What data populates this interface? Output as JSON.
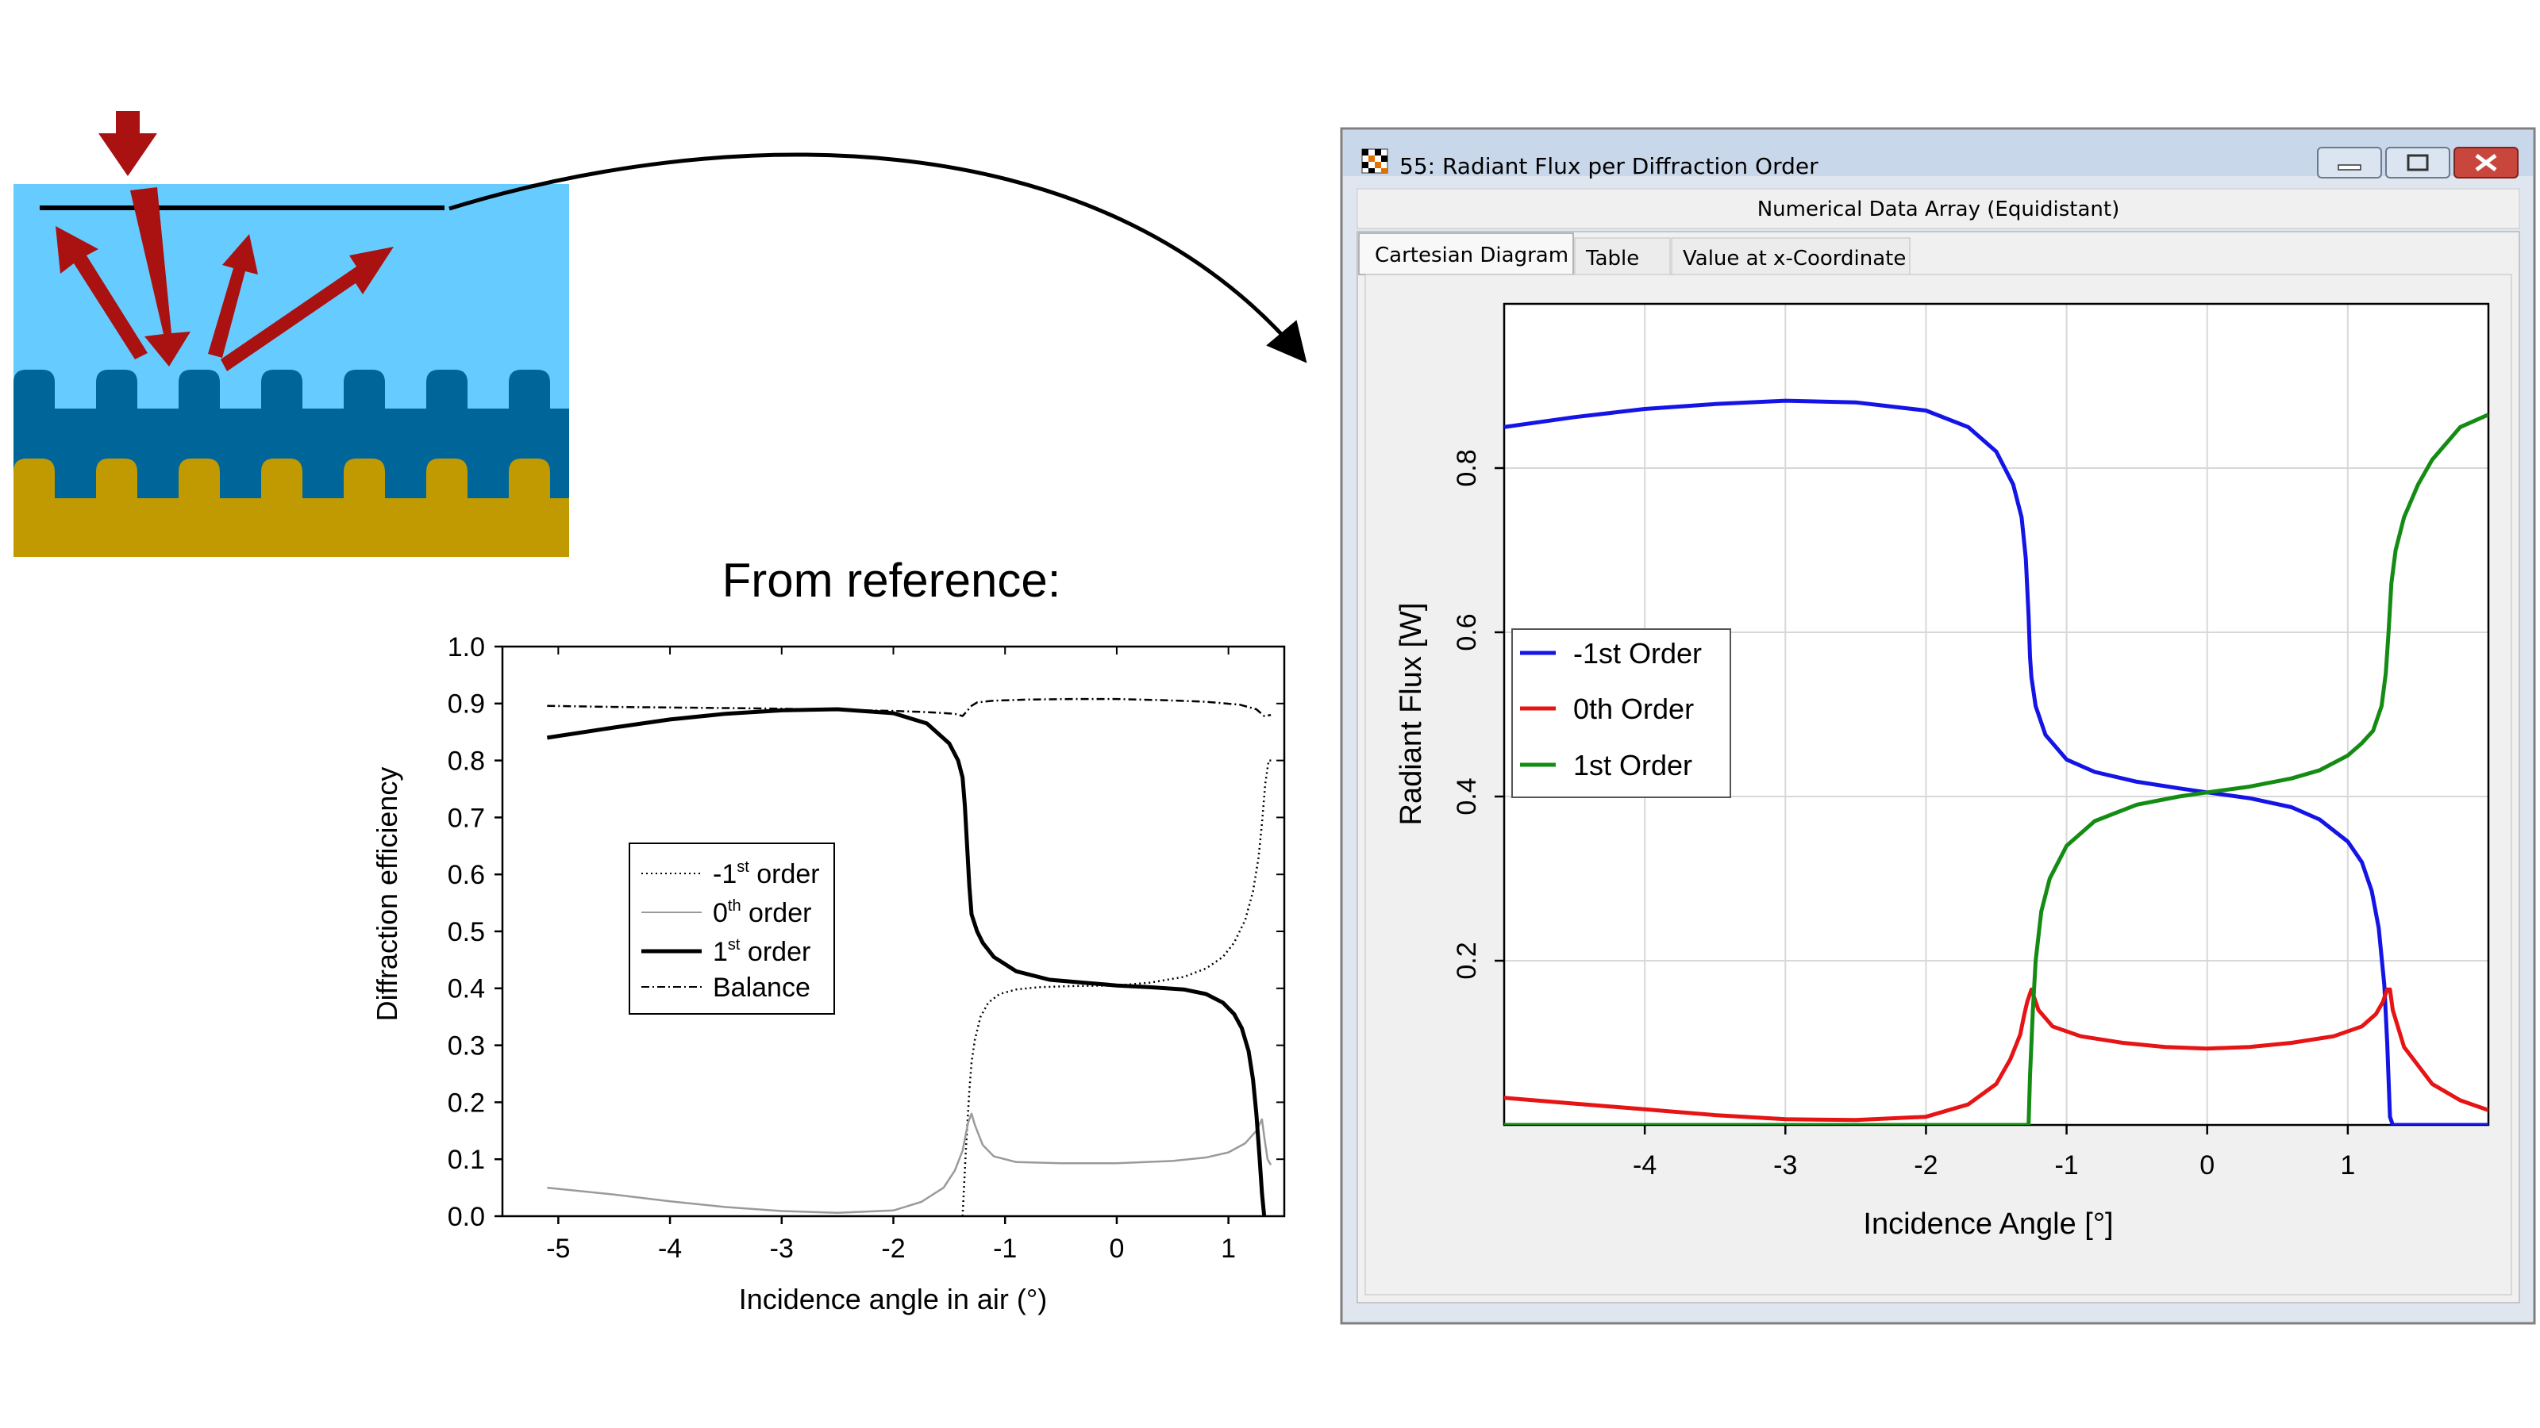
{
  "reference_heading": "From reference:",
  "window": {
    "title": "55: Radiant Flux per Diffraction Order",
    "subtitle": "Numerical Data Array (Equidistant)",
    "tabs": [
      "Cartesian Diagram",
      "Table",
      "Value at x-Coordinate"
    ],
    "active_tab": "Cartesian Diagram",
    "colors": {
      "frame": "#7f7f7f",
      "title_bg": "#c9d7ea",
      "close_button": "#c9463d",
      "panel": "#f0f0f0"
    }
  },
  "chart_data": [
    {
      "id": "reference",
      "type": "line",
      "xlabel": "Incidence angle in air (°)",
      "ylabel": "Diffraction efficiency",
      "xlim": [
        -5.5,
        1.5
      ],
      "ylim": [
        0,
        1.0
      ],
      "x_ticks": [
        -5,
        -4,
        -3,
        -2,
        -1,
        0,
        1
      ],
      "y_ticks": [
        0.0,
        0.1,
        0.2,
        0.3,
        0.4,
        0.5,
        0.6,
        0.7,
        0.8,
        0.9,
        1.0
      ],
      "y_tick_labels": [
        "0.0",
        "0.1",
        "0.2",
        "0.3",
        "0.4",
        "0.5",
        "0.6",
        "0.7",
        "0.8",
        "0.9",
        "1.0"
      ],
      "legend": [
        {
          "label": "-1",
          "sup": "st",
          "rest": " order"
        },
        {
          "label": "0",
          "sup": "th",
          "rest": " order"
        },
        {
          "label": "1",
          "sup": "st",
          "rest": " order"
        },
        {
          "label": "Balance",
          "sup": "",
          "rest": ""
        }
      ],
      "series": [
        {
          "style": "dotted",
          "color": "#000000",
          "x": [
            -1.38,
            -1.35,
            -1.32,
            -1.3,
            -1.27,
            -1.22,
            -1.15,
            -1.05,
            -0.9,
            -0.7,
            -0.4,
            0.0,
            0.3,
            0.6,
            0.8,
            0.95,
            1.05,
            1.15,
            1.22,
            1.27,
            1.3,
            1.33,
            1.36,
            1.4
          ],
          "y": [
            0.0,
            0.12,
            0.22,
            0.27,
            0.31,
            0.35,
            0.375,
            0.39,
            0.398,
            0.402,
            0.404,
            0.405,
            0.41,
            0.42,
            0.435,
            0.455,
            0.48,
            0.52,
            0.57,
            0.63,
            0.69,
            0.76,
            0.8,
            0.8
          ]
        },
        {
          "style": "solid",
          "color": "#9a9a9a",
          "x": [
            -5.1,
            -4.5,
            -4.0,
            -3.5,
            -3.0,
            -2.5,
            -2.0,
            -1.75,
            -1.55,
            -1.45,
            -1.38,
            -1.33,
            -1.3,
            -1.27,
            -1.2,
            -1.1,
            -0.9,
            -0.5,
            0.0,
            0.5,
            0.8,
            1.0,
            1.15,
            1.25,
            1.3,
            1.32,
            1.35,
            1.38
          ],
          "y": [
            0.05,
            0.038,
            0.026,
            0.016,
            0.009,
            0.006,
            0.01,
            0.025,
            0.05,
            0.08,
            0.115,
            0.165,
            0.18,
            0.16,
            0.125,
            0.105,
            0.095,
            0.093,
            0.093,
            0.097,
            0.103,
            0.112,
            0.128,
            0.15,
            0.17,
            0.14,
            0.1,
            0.09
          ]
        },
        {
          "style": "solid",
          "color": "#000000",
          "width": "thick",
          "x": [
            -5.1,
            -4.5,
            -4.0,
            -3.5,
            -3.0,
            -2.5,
            -2.0,
            -1.7,
            -1.5,
            -1.42,
            -1.38,
            -1.36,
            -1.34,
            -1.32,
            -1.3,
            -1.25,
            -1.2,
            -1.1,
            -0.9,
            -0.6,
            -0.3,
            0.0,
            0.3,
            0.6,
            0.8,
            0.95,
            1.05,
            1.12,
            1.18,
            1.22,
            1.25,
            1.28,
            1.3,
            1.32
          ],
          "y": [
            0.84,
            0.858,
            0.872,
            0.882,
            0.888,
            0.89,
            0.883,
            0.865,
            0.83,
            0.8,
            0.77,
            0.72,
            0.65,
            0.58,
            0.53,
            0.5,
            0.48,
            0.455,
            0.43,
            0.415,
            0.41,
            0.405,
            0.402,
            0.398,
            0.39,
            0.375,
            0.355,
            0.33,
            0.29,
            0.24,
            0.18,
            0.1,
            0.04,
            0.0
          ]
        },
        {
          "style": "dashdot",
          "color": "#000000",
          "x": [
            -5.1,
            -4.5,
            -4.0,
            -3.5,
            -3.0,
            -2.5,
            -2.0,
            -1.7,
            -1.45,
            -1.38,
            -1.3,
            -1.25,
            -1.1,
            -0.8,
            -0.4,
            0.0,
            0.4,
            0.8,
            1.1,
            1.25,
            1.32,
            1.38
          ],
          "y": [
            0.896,
            0.894,
            0.893,
            0.892,
            0.891,
            0.889,
            0.887,
            0.885,
            0.882,
            0.878,
            0.896,
            0.902,
            0.905,
            0.907,
            0.908,
            0.908,
            0.906,
            0.903,
            0.898,
            0.89,
            0.878,
            0.88
          ]
        }
      ]
    },
    {
      "id": "vl",
      "type": "line",
      "xlabel": "Incidence Angle [°]",
      "ylabel": "Radiant Flux [W]",
      "xlim": [
        -5,
        2
      ],
      "ylim": [
        0,
        1.0
      ],
      "x_ticks": [
        -4,
        -3,
        -2,
        -1,
        0,
        1
      ],
      "y_ticks": [
        0.2,
        0.4,
        0.6,
        0.8
      ],
      "y_tick_labels": [
        "0.2",
        "0.4",
        "0.6",
        "0.8"
      ],
      "grid": true,
      "legend_position": "left",
      "series": [
        {
          "name": "-1st Order",
          "color": "#1414e6",
          "x": [
            -5.0,
            -4.5,
            -4.0,
            -3.5,
            -3.0,
            -2.5,
            -2.0,
            -1.7,
            -1.5,
            -1.38,
            -1.32,
            -1.29,
            -1.27,
            -1.26,
            -1.25,
            -1.22,
            -1.15,
            -1.0,
            -0.8,
            -0.5,
            -0.2,
            0.0,
            0.3,
            0.6,
            0.8,
            1.0,
            1.1,
            1.17,
            1.22,
            1.26,
            1.28,
            1.3,
            1.32,
            1.5,
            2.0
          ],
          "y": [
            0.85,
            0.862,
            0.872,
            0.878,
            0.882,
            0.88,
            0.87,
            0.85,
            0.82,
            0.78,
            0.74,
            0.69,
            0.62,
            0.57,
            0.545,
            0.51,
            0.475,
            0.445,
            0.43,
            0.418,
            0.41,
            0.405,
            0.398,
            0.387,
            0.372,
            0.345,
            0.32,
            0.285,
            0.24,
            0.17,
            0.1,
            0.01,
            0.0,
            0.0,
            0.0
          ]
        },
        {
          "name": "0th Order",
          "color": "#e61414",
          "x": [
            -5.0,
            -4.5,
            -4.0,
            -3.5,
            -3.0,
            -2.5,
            -2.0,
            -1.7,
            -1.5,
            -1.4,
            -1.33,
            -1.3,
            -1.28,
            -1.25,
            -1.2,
            -1.1,
            -0.9,
            -0.6,
            -0.3,
            0.0,
            0.3,
            0.6,
            0.9,
            1.1,
            1.2,
            1.25,
            1.28,
            1.3,
            1.32,
            1.4,
            1.6,
            1.8,
            2.0
          ],
          "y": [
            0.033,
            0.026,
            0.019,
            0.012,
            0.007,
            0.006,
            0.01,
            0.025,
            0.05,
            0.08,
            0.11,
            0.135,
            0.15,
            0.165,
            0.14,
            0.12,
            0.108,
            0.1,
            0.095,
            0.093,
            0.095,
            0.1,
            0.108,
            0.12,
            0.135,
            0.15,
            0.165,
            0.165,
            0.14,
            0.095,
            0.05,
            0.03,
            0.018
          ]
        },
        {
          "name": "1st Order",
          "color": "#148c14",
          "x": [
            -5.0,
            -1.27,
            -1.26,
            -1.24,
            -1.22,
            -1.18,
            -1.12,
            -1.0,
            -0.8,
            -0.5,
            -0.2,
            0.0,
            0.3,
            0.6,
            0.8,
            1.0,
            1.1,
            1.18,
            1.24,
            1.27,
            1.29,
            1.31,
            1.34,
            1.4,
            1.5,
            1.6,
            1.8,
            2.0
          ],
          "y": [
            0.0,
            0.0,
            0.06,
            0.14,
            0.2,
            0.26,
            0.3,
            0.34,
            0.37,
            0.39,
            0.4,
            0.405,
            0.412,
            0.422,
            0.432,
            0.45,
            0.465,
            0.48,
            0.51,
            0.55,
            0.6,
            0.66,
            0.7,
            0.74,
            0.78,
            0.81,
            0.85,
            0.865
          ]
        }
      ]
    }
  ]
}
